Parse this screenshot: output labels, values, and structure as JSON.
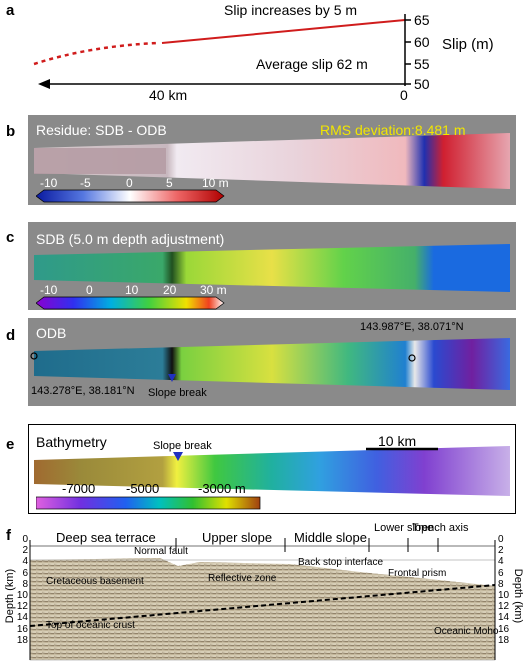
{
  "panels": {
    "a": {
      "letter": "a",
      "top_annotation": "Slip increases by 5 m",
      "avg_annotation": "Average slip 62 m",
      "distance_label": "40 km",
      "zero_label": "0",
      "axis_label": "Slip (m)",
      "axis_ticks": [
        "65",
        "60",
        "55",
        "50"
      ]
    },
    "b": {
      "letter": "b",
      "title": "Residue: SDB - ODB",
      "rms": "RMS deviation:8.481 m",
      "cbar_ticks": [
        "-10",
        "-5",
        "0",
        "5",
        "10 m"
      ]
    },
    "c": {
      "letter": "c",
      "title": "SDB (5.0 m depth adjustment)",
      "cbar_ticks": [
        "-10",
        "0",
        "10",
        "20",
        "30 m"
      ]
    },
    "d": {
      "letter": "d",
      "title": "ODB",
      "coord_right": "143.987°E, 38.071°N",
      "coord_left": "143.278°E, 38.181°N",
      "slope_break": "Slope break"
    },
    "e": {
      "letter": "e",
      "title": "Bathymetry",
      "slope_break": "Slope break",
      "scale": "10 km",
      "cbar_ticks": [
        "-7000",
        "-5000",
        "-3000 m"
      ]
    },
    "f": {
      "letter": "f",
      "zones": [
        "Deep sea terrace",
        "Upper slope",
        "Middle slope",
        "Lower slope",
        "Trench axis"
      ],
      "depth_ticks": [
        "0",
        "2",
        "4",
        "6",
        "8",
        "10",
        "12",
        "14",
        "16",
        "18"
      ],
      "depth_label": "Depth (km)",
      "annotations": {
        "normal_fault": "Normal fault",
        "back_stop": "Back stop interface",
        "frontal_prism": "Frontal prism",
        "cretaceous": "Cretaceous basement",
        "reflective": "Reflective zone",
        "oceanic_crust": "Top of oceanic crust",
        "oceanic_moho": "Oceanic Moho"
      }
    }
  }
}
